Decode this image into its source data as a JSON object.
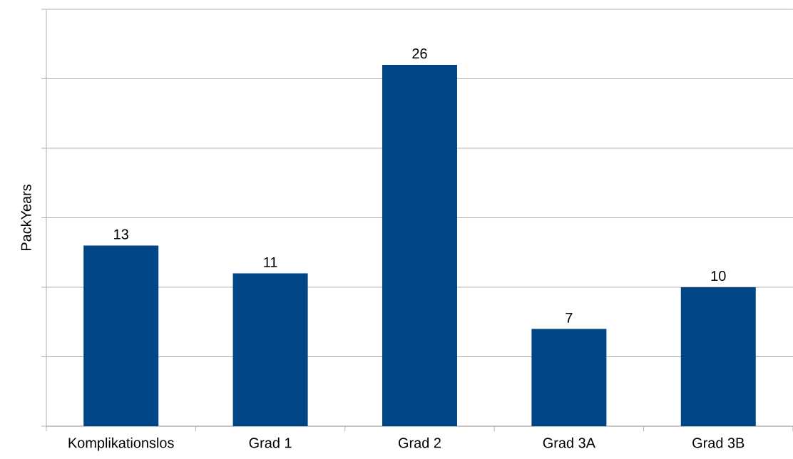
{
  "chart_data": {
    "type": "bar",
    "ylabel": "PackYears",
    "categories": [
      "Komplikationslos",
      "Grad 1",
      "Grad 2",
      "Grad 3A",
      "Grad 3B"
    ],
    "values": [
      13,
      11,
      26,
      7,
      10
    ],
    "color": "#004586",
    "ylim": [
      0,
      30
    ],
    "yticks": [
      {
        "value": 0,
        "label": null
      },
      {
        "value": 5,
        "label": null
      },
      {
        "value": 10,
        "label": null
      },
      {
        "value": 15,
        "label": null
      },
      {
        "value": 20,
        "label": null
      },
      {
        "value": 25,
        "label": null
      },
      {
        "value": 30,
        "label": null
      }
    ],
    "tick_labels": "x",
    "grid": "y",
    "data_labels": true
  }
}
